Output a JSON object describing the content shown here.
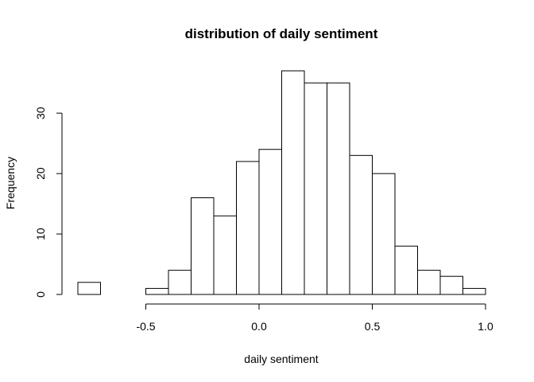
{
  "chart_data": {
    "type": "bar",
    "title": "distribution of daily sentiment",
    "xlabel": "daily sentiment",
    "ylabel": "Frequency",
    "bin_edges": [
      -0.8,
      -0.7,
      -0.6,
      -0.5,
      -0.4,
      -0.3,
      -0.2,
      -0.1,
      0.0,
      0.1,
      0.2,
      0.3,
      0.4,
      0.5,
      0.6,
      0.7,
      0.8,
      0.9,
      1.0
    ],
    "values": [
      2,
      0,
      0,
      1,
      4,
      16,
      13,
      22,
      24,
      37,
      35,
      35,
      23,
      20,
      8,
      4,
      3,
      1
    ],
    "xlim": [
      -0.8,
      1.0
    ],
    "ylim": [
      0,
      37
    ],
    "x_ticks": [
      -0.5,
      0.0,
      0.5,
      1.0
    ],
    "x_tick_labels": [
      "-0.5",
      "0.0",
      "0.5",
      "1.0"
    ],
    "y_ticks": [
      0,
      10,
      20,
      30
    ],
    "y_tick_labels": [
      "0",
      "10",
      "20",
      "30"
    ],
    "grid": false,
    "colors": {
      "bar_fill": "#ffffff",
      "bar_stroke": "#000000"
    }
  }
}
